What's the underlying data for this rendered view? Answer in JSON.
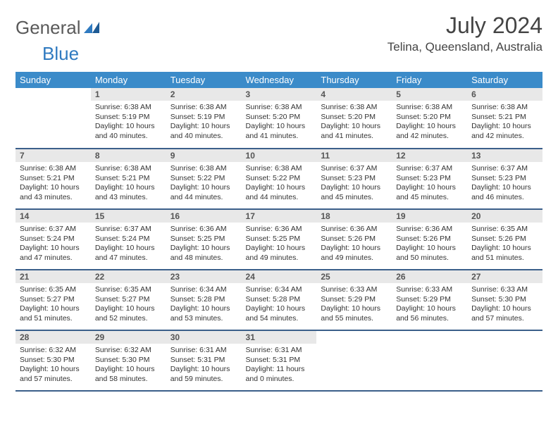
{
  "logo": {
    "word1": "General",
    "word2": "Blue"
  },
  "title": "July 2024",
  "location": "Telina, Queensland, Australia",
  "colors": {
    "header_bg": "#3b8bc9",
    "header_text": "#ffffff",
    "row_divider": "#3b5f8a",
    "daynum_bg": "#e8e8e8",
    "logo_gray": "#5a5a5a",
    "logo_blue": "#2f7ac0"
  },
  "weekdays": [
    "Sunday",
    "Monday",
    "Tuesday",
    "Wednesday",
    "Thursday",
    "Friday",
    "Saturday"
  ],
  "weeks": [
    [
      null,
      {
        "n": "1",
        "sr": "Sunrise: 6:38 AM",
        "ss": "Sunset: 5:19 PM",
        "d1": "Daylight: 10 hours",
        "d2": "and 40 minutes."
      },
      {
        "n": "2",
        "sr": "Sunrise: 6:38 AM",
        "ss": "Sunset: 5:19 PM",
        "d1": "Daylight: 10 hours",
        "d2": "and 40 minutes."
      },
      {
        "n": "3",
        "sr": "Sunrise: 6:38 AM",
        "ss": "Sunset: 5:20 PM",
        "d1": "Daylight: 10 hours",
        "d2": "and 41 minutes."
      },
      {
        "n": "4",
        "sr": "Sunrise: 6:38 AM",
        "ss": "Sunset: 5:20 PM",
        "d1": "Daylight: 10 hours",
        "d2": "and 41 minutes."
      },
      {
        "n": "5",
        "sr": "Sunrise: 6:38 AM",
        "ss": "Sunset: 5:20 PM",
        "d1": "Daylight: 10 hours",
        "d2": "and 42 minutes."
      },
      {
        "n": "6",
        "sr": "Sunrise: 6:38 AM",
        "ss": "Sunset: 5:21 PM",
        "d1": "Daylight: 10 hours",
        "d2": "and 42 minutes."
      }
    ],
    [
      {
        "n": "7",
        "sr": "Sunrise: 6:38 AM",
        "ss": "Sunset: 5:21 PM",
        "d1": "Daylight: 10 hours",
        "d2": "and 43 minutes."
      },
      {
        "n": "8",
        "sr": "Sunrise: 6:38 AM",
        "ss": "Sunset: 5:21 PM",
        "d1": "Daylight: 10 hours",
        "d2": "and 43 minutes."
      },
      {
        "n": "9",
        "sr": "Sunrise: 6:38 AM",
        "ss": "Sunset: 5:22 PM",
        "d1": "Daylight: 10 hours",
        "d2": "and 44 minutes."
      },
      {
        "n": "10",
        "sr": "Sunrise: 6:38 AM",
        "ss": "Sunset: 5:22 PM",
        "d1": "Daylight: 10 hours",
        "d2": "and 44 minutes."
      },
      {
        "n": "11",
        "sr": "Sunrise: 6:37 AM",
        "ss": "Sunset: 5:23 PM",
        "d1": "Daylight: 10 hours",
        "d2": "and 45 minutes."
      },
      {
        "n": "12",
        "sr": "Sunrise: 6:37 AM",
        "ss": "Sunset: 5:23 PM",
        "d1": "Daylight: 10 hours",
        "d2": "and 45 minutes."
      },
      {
        "n": "13",
        "sr": "Sunrise: 6:37 AM",
        "ss": "Sunset: 5:23 PM",
        "d1": "Daylight: 10 hours",
        "d2": "and 46 minutes."
      }
    ],
    [
      {
        "n": "14",
        "sr": "Sunrise: 6:37 AM",
        "ss": "Sunset: 5:24 PM",
        "d1": "Daylight: 10 hours",
        "d2": "and 47 minutes."
      },
      {
        "n": "15",
        "sr": "Sunrise: 6:37 AM",
        "ss": "Sunset: 5:24 PM",
        "d1": "Daylight: 10 hours",
        "d2": "and 47 minutes."
      },
      {
        "n": "16",
        "sr": "Sunrise: 6:36 AM",
        "ss": "Sunset: 5:25 PM",
        "d1": "Daylight: 10 hours",
        "d2": "and 48 minutes."
      },
      {
        "n": "17",
        "sr": "Sunrise: 6:36 AM",
        "ss": "Sunset: 5:25 PM",
        "d1": "Daylight: 10 hours",
        "d2": "and 49 minutes."
      },
      {
        "n": "18",
        "sr": "Sunrise: 6:36 AM",
        "ss": "Sunset: 5:26 PM",
        "d1": "Daylight: 10 hours",
        "d2": "and 49 minutes."
      },
      {
        "n": "19",
        "sr": "Sunrise: 6:36 AM",
        "ss": "Sunset: 5:26 PM",
        "d1": "Daylight: 10 hours",
        "d2": "and 50 minutes."
      },
      {
        "n": "20",
        "sr": "Sunrise: 6:35 AM",
        "ss": "Sunset: 5:26 PM",
        "d1": "Daylight: 10 hours",
        "d2": "and 51 minutes."
      }
    ],
    [
      {
        "n": "21",
        "sr": "Sunrise: 6:35 AM",
        "ss": "Sunset: 5:27 PM",
        "d1": "Daylight: 10 hours",
        "d2": "and 51 minutes."
      },
      {
        "n": "22",
        "sr": "Sunrise: 6:35 AM",
        "ss": "Sunset: 5:27 PM",
        "d1": "Daylight: 10 hours",
        "d2": "and 52 minutes."
      },
      {
        "n": "23",
        "sr": "Sunrise: 6:34 AM",
        "ss": "Sunset: 5:28 PM",
        "d1": "Daylight: 10 hours",
        "d2": "and 53 minutes."
      },
      {
        "n": "24",
        "sr": "Sunrise: 6:34 AM",
        "ss": "Sunset: 5:28 PM",
        "d1": "Daylight: 10 hours",
        "d2": "and 54 minutes."
      },
      {
        "n": "25",
        "sr": "Sunrise: 6:33 AM",
        "ss": "Sunset: 5:29 PM",
        "d1": "Daylight: 10 hours",
        "d2": "and 55 minutes."
      },
      {
        "n": "26",
        "sr": "Sunrise: 6:33 AM",
        "ss": "Sunset: 5:29 PM",
        "d1": "Daylight: 10 hours",
        "d2": "and 56 minutes."
      },
      {
        "n": "27",
        "sr": "Sunrise: 6:33 AM",
        "ss": "Sunset: 5:30 PM",
        "d1": "Daylight: 10 hours",
        "d2": "and 57 minutes."
      }
    ],
    [
      {
        "n": "28",
        "sr": "Sunrise: 6:32 AM",
        "ss": "Sunset: 5:30 PM",
        "d1": "Daylight: 10 hours",
        "d2": "and 57 minutes."
      },
      {
        "n": "29",
        "sr": "Sunrise: 6:32 AM",
        "ss": "Sunset: 5:30 PM",
        "d1": "Daylight: 10 hours",
        "d2": "and 58 minutes."
      },
      {
        "n": "30",
        "sr": "Sunrise: 6:31 AM",
        "ss": "Sunset: 5:31 PM",
        "d1": "Daylight: 10 hours",
        "d2": "and 59 minutes."
      },
      {
        "n": "31",
        "sr": "Sunrise: 6:31 AM",
        "ss": "Sunset: 5:31 PM",
        "d1": "Daylight: 11 hours",
        "d2": "and 0 minutes."
      },
      null,
      null,
      null
    ]
  ]
}
